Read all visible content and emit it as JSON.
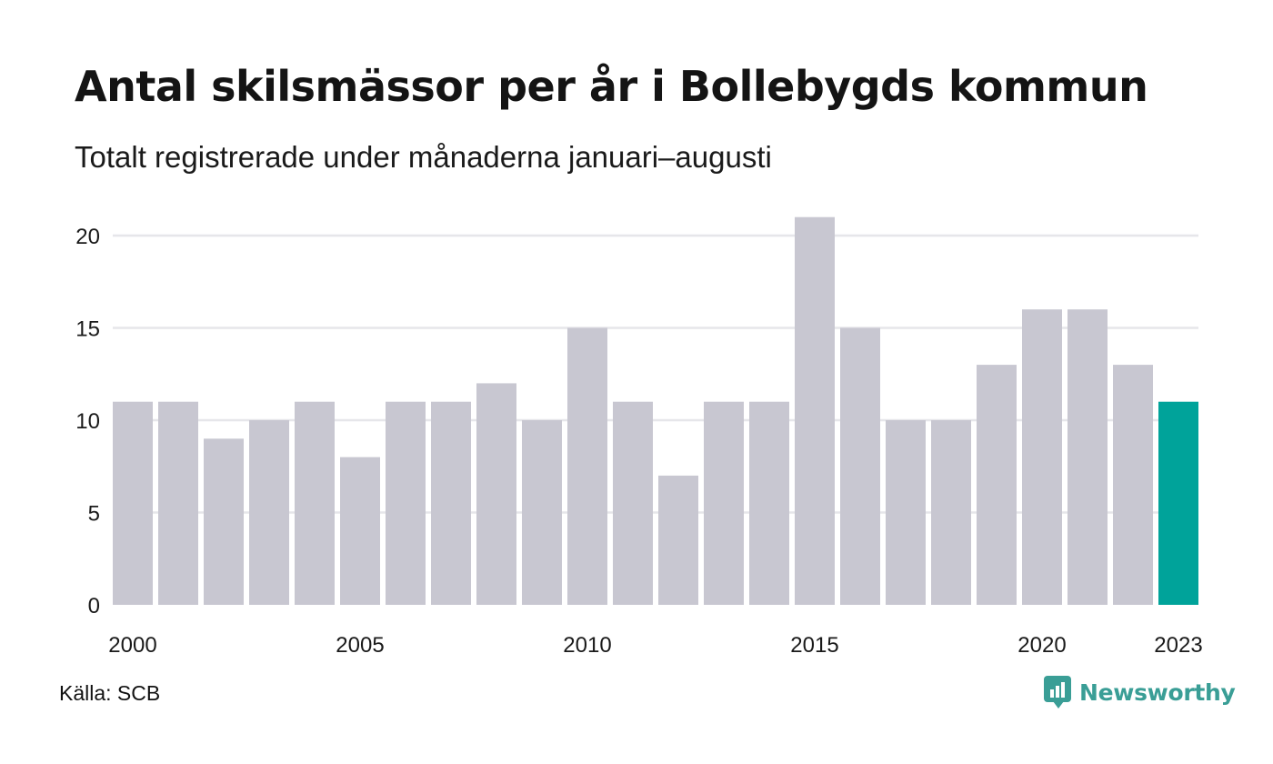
{
  "header": {
    "title": "Antal skilsmässor per år i Bollebygds kommun",
    "subtitle": "Totalt registrerade under månaderna januari–augusti"
  },
  "footer": {
    "source": "Källa: SCB",
    "brand": "Newsworthy",
    "brand_icon": "newsworthy-logo-icon",
    "brand_color": "#3a9e96"
  },
  "chart_data": {
    "type": "bar",
    "categories": [
      "2000",
      "2001",
      "2002",
      "2003",
      "2004",
      "2005",
      "2006",
      "2007",
      "2008",
      "2009",
      "2010",
      "2011",
      "2012",
      "2013",
      "2014",
      "2015",
      "2016",
      "2017",
      "2018",
      "2019",
      "2020",
      "2021",
      "2022",
      "2023"
    ],
    "values": [
      11,
      11,
      9,
      10,
      11,
      8,
      11,
      11,
      12,
      10,
      15,
      11,
      7,
      11,
      11,
      21,
      15,
      10,
      10,
      13,
      16,
      16,
      13,
      11
    ],
    "x_tick_labels": [
      "2000",
      "2005",
      "2010",
      "2015",
      "2020",
      "2023"
    ],
    "y_ticks": [
      0,
      5,
      10,
      15,
      20
    ],
    "ylim": [
      0,
      21
    ],
    "grid": true,
    "bar_color": "#c8c7d1",
    "highlight_color": "#00a39a",
    "highlight_category": "2023",
    "title": "Antal skilsmässor per år i Bollebygds kommun",
    "xlabel": "",
    "ylabel": ""
  }
}
